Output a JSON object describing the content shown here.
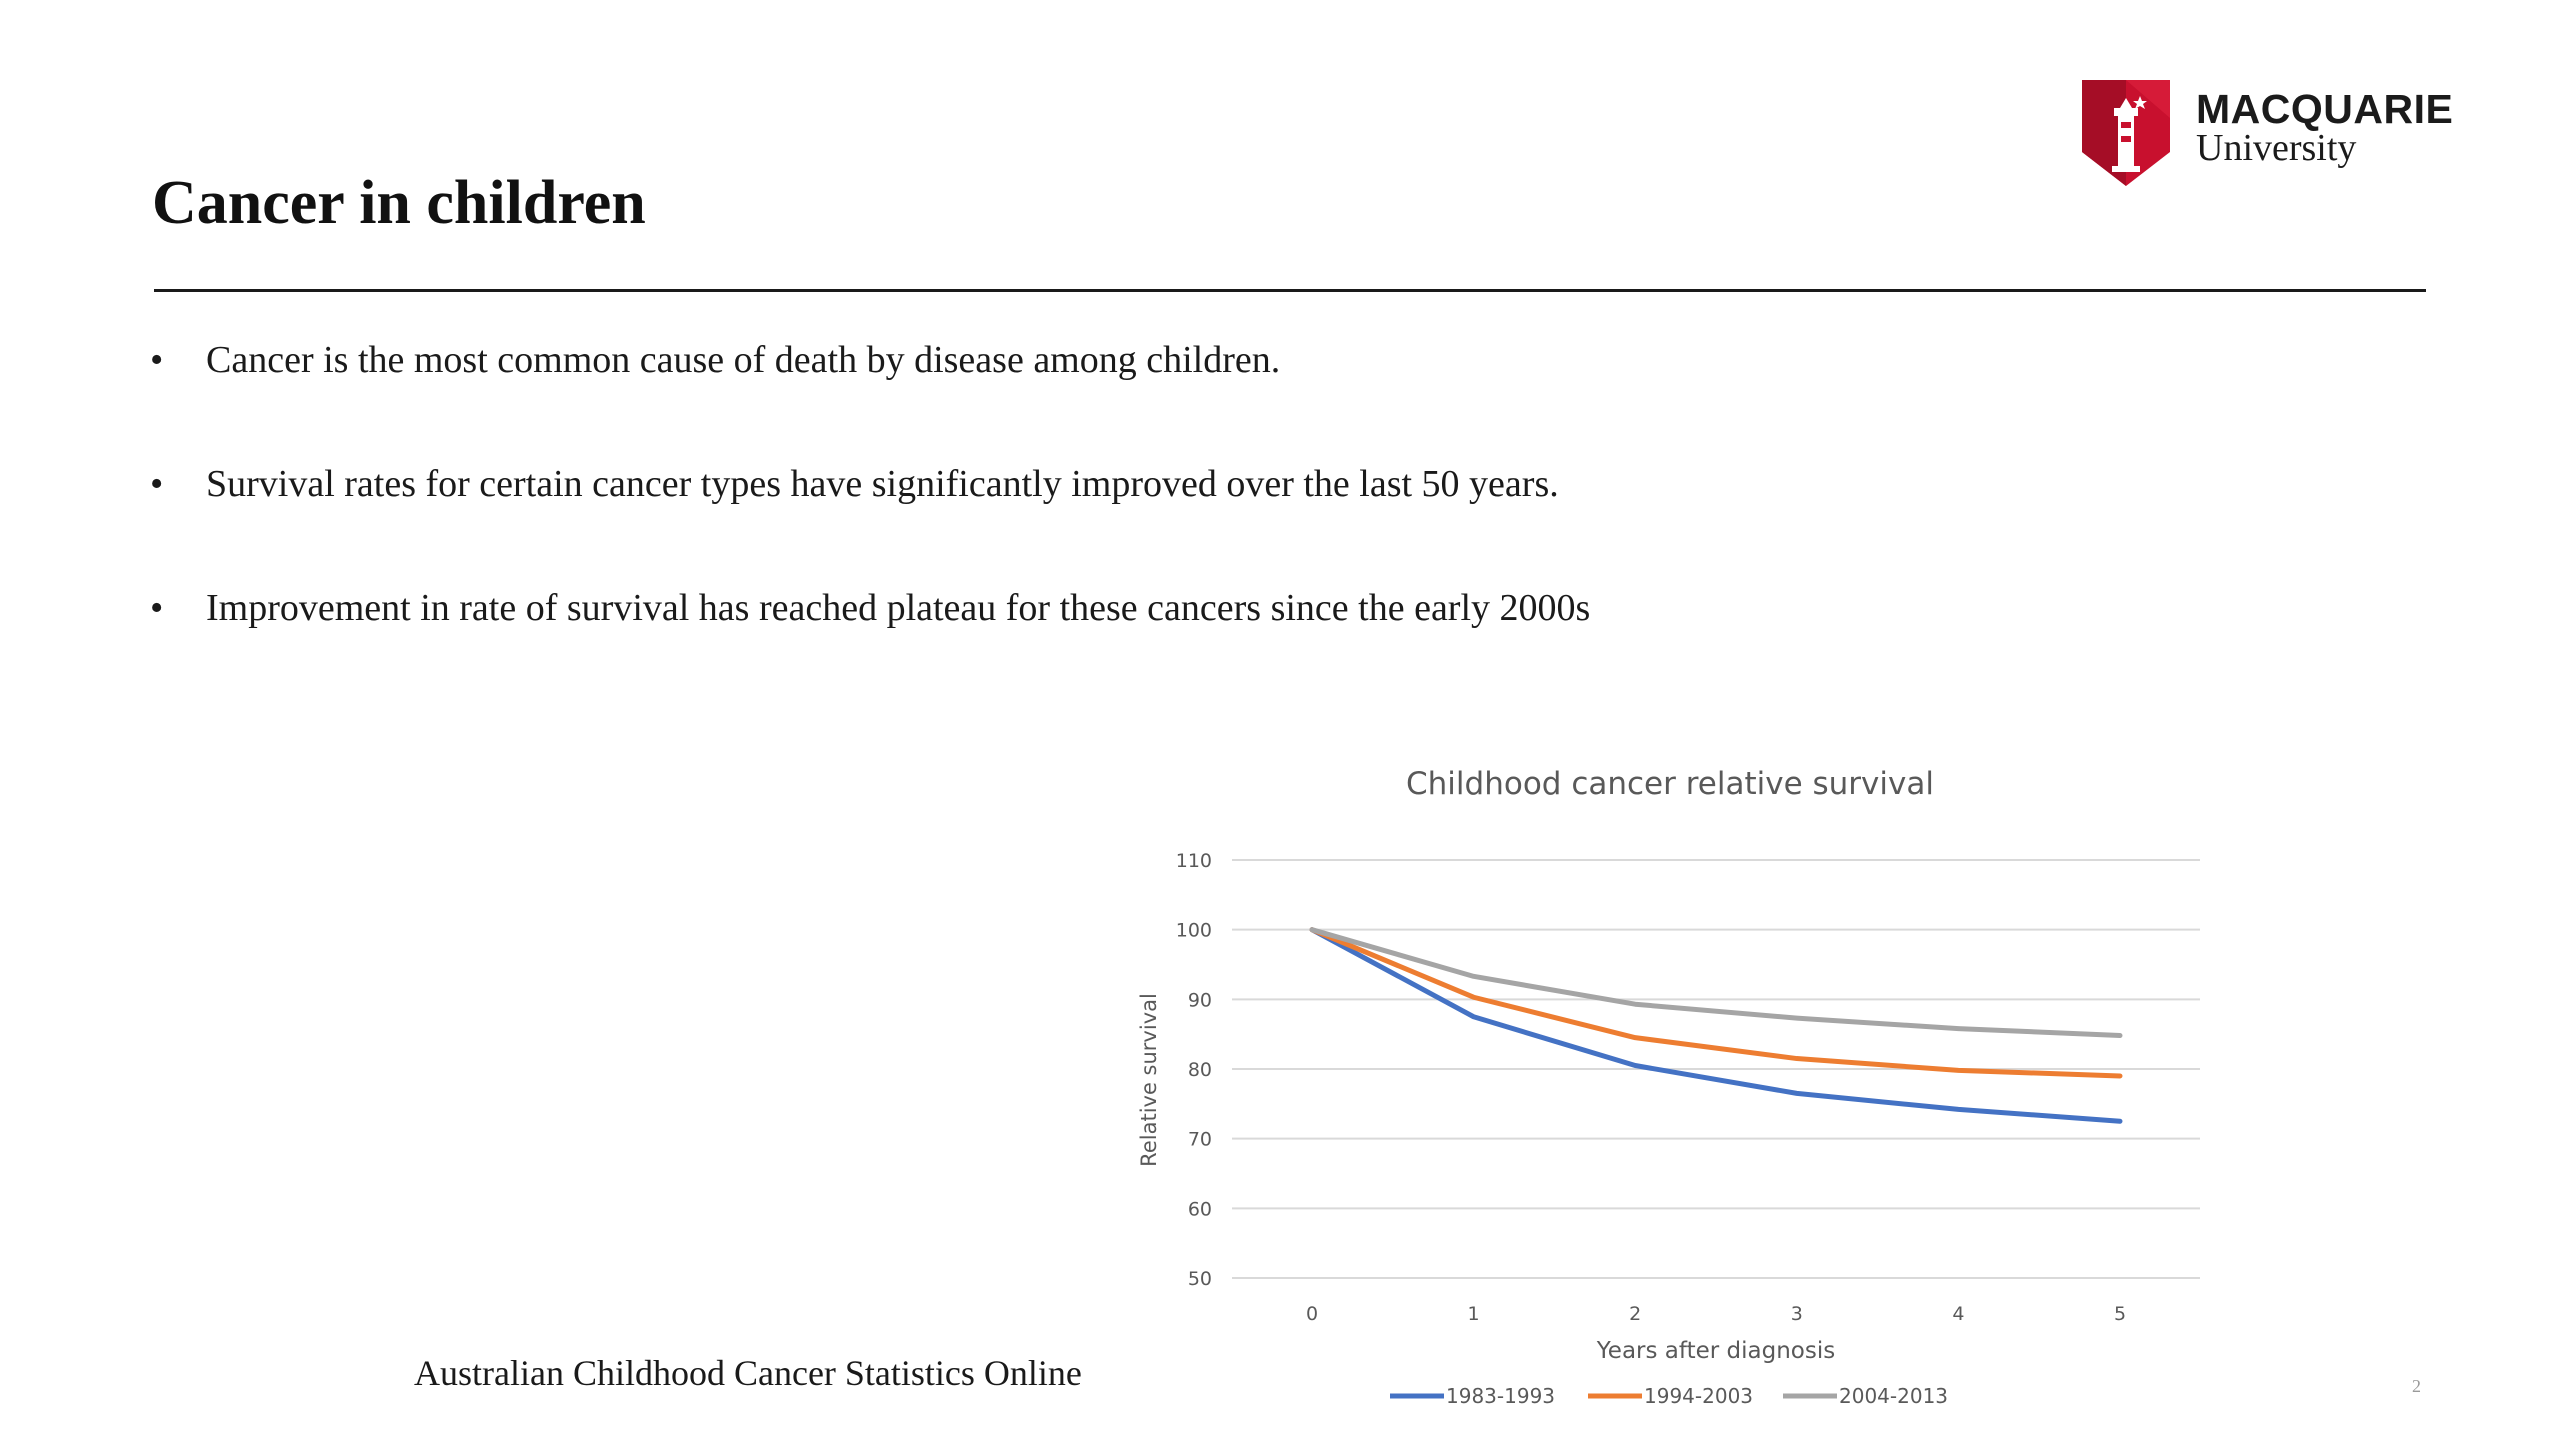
{
  "slide": {
    "title": "Cancer in children",
    "bullets": [
      "Cancer is the most common cause of death by disease among children.",
      "Survival rates for certain cancer types have significantly improved over the last 50 years.",
      "Improvement in rate of survival has reached plateau for these cancers since the early 2000s"
    ],
    "source": "Australian Childhood Cancer Statistics Online",
    "page_number": "2"
  },
  "logo": {
    "word1": "MACQUARIE",
    "word2": "University",
    "shield_color": "#c8102e"
  },
  "chart_data": {
    "type": "line",
    "title": "Childhood cancer relative survival",
    "xlabel": "Years after diagnosis",
    "ylabel": "Relative survival",
    "x": [
      0,
      1,
      2,
      3,
      4,
      5
    ],
    "ylim": [
      50,
      110
    ],
    "yticks": [
      50,
      60,
      70,
      80,
      90,
      100,
      110
    ],
    "grid": true,
    "legend_position": "bottom",
    "series": [
      {
        "name": "1983-1993",
        "color": "#4472c4",
        "values": [
          100,
          87.5,
          80.5,
          76.5,
          74.2,
          72.5
        ]
      },
      {
        "name": "1994-2003",
        "color": "#ed7d31",
        "values": [
          100,
          90.3,
          84.5,
          81.5,
          79.8,
          79
        ]
      },
      {
        "name": "2004-2013",
        "color": "#a5a5a5",
        "values": [
          100,
          93.3,
          89.3,
          87.3,
          85.8,
          84.8
        ]
      }
    ]
  }
}
